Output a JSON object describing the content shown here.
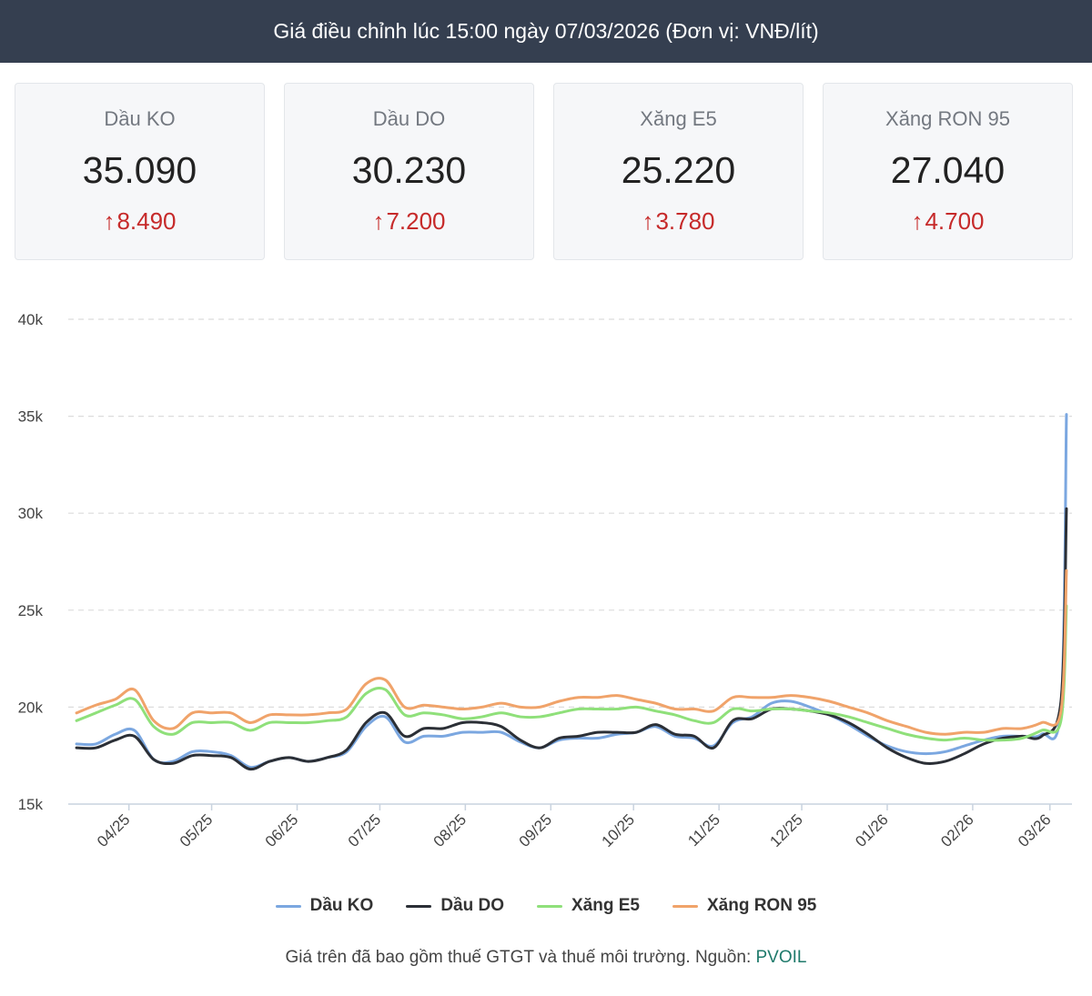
{
  "header": {
    "title": "Giá điều chỉnh lúc 15:00 ngày 07/03/2026 (Đơn vị: VNĐ/lít)"
  },
  "cards": [
    {
      "label": "Dầu KO",
      "price": "35.090",
      "change": "8.490"
    },
    {
      "label": "Dầu DO",
      "price": "30.230",
      "change": "7.200"
    },
    {
      "label": "Xăng E5",
      "price": "25.220",
      "change": "3.780"
    },
    {
      "label": "Xăng RON 95",
      "price": "27.040",
      "change": "4.700"
    }
  ],
  "icons": {
    "up_arrow": "arrow-up-icon"
  },
  "colors": {
    "header_bg": "#353f50",
    "increase": "#c62a2a",
    "source_link": "#1f7a6b"
  },
  "chart_data": {
    "type": "line",
    "title": "",
    "xlabel": "",
    "ylabel": "",
    "ylim": [
      15000,
      40000
    ],
    "yticks": [
      {
        "value": 15000,
        "label": "15k"
      },
      {
        "value": 20000,
        "label": "20k"
      },
      {
        "value": 25000,
        "label": "25k"
      },
      {
        "value": 30000,
        "label": "30k"
      },
      {
        "value": 35000,
        "label": "35k"
      },
      {
        "value": 40000,
        "label": "40k"
      }
    ],
    "xlim": [
      "2025-03-10",
      "2026-03-09"
    ],
    "xticks": [
      {
        "date": "2025-04-01",
        "label": "04/25"
      },
      {
        "date": "2025-05-01",
        "label": "05/25"
      },
      {
        "date": "2025-06-01",
        "label": "06/25"
      },
      {
        "date": "2025-07-01",
        "label": "07/25"
      },
      {
        "date": "2025-08-01",
        "label": "08/25"
      },
      {
        "date": "2025-09-01",
        "label": "09/25"
      },
      {
        "date": "2025-10-01",
        "label": "10/25"
      },
      {
        "date": "2025-11-01",
        "label": "11/25"
      },
      {
        "date": "2025-12-01",
        "label": "12/25"
      },
      {
        "date": "2026-01-01",
        "label": "01/26"
      },
      {
        "date": "2026-02-01",
        "label": "02/26"
      },
      {
        "date": "2026-03-01",
        "label": "03/26"
      }
    ],
    "grid": "horizontal dashed",
    "legend_position": "bottom-center",
    "x": [
      "2025-03-13",
      "2025-03-20",
      "2025-03-27",
      "2025-04-03",
      "2025-04-10",
      "2025-04-17",
      "2025-04-24",
      "2025-05-01",
      "2025-05-08",
      "2025-05-15",
      "2025-05-22",
      "2025-05-29",
      "2025-06-05",
      "2025-06-12",
      "2025-06-19",
      "2025-06-26",
      "2025-07-03",
      "2025-07-10",
      "2025-07-17",
      "2025-07-24",
      "2025-07-31",
      "2025-08-07",
      "2025-08-14",
      "2025-08-21",
      "2025-08-28",
      "2025-09-04",
      "2025-09-11",
      "2025-09-18",
      "2025-09-25",
      "2025-10-02",
      "2025-10-09",
      "2025-10-16",
      "2025-10-23",
      "2025-10-30",
      "2025-11-06",
      "2025-11-13",
      "2025-11-20",
      "2025-11-27",
      "2025-12-04",
      "2025-12-11",
      "2025-12-18",
      "2025-12-25",
      "2026-01-01",
      "2026-01-08",
      "2026-01-15",
      "2026-01-22",
      "2026-01-29",
      "2026-02-05",
      "2026-02-12",
      "2026-02-19",
      "2026-02-26",
      "2026-03-05",
      "2026-03-07"
    ],
    "series": [
      {
        "name": "Dầu KO",
        "color": "#7ba7e0",
        "values": [
          18100,
          18100,
          18600,
          18800,
          17300,
          17200,
          17700,
          17700,
          17500,
          16900,
          17200,
          17400,
          17200,
          17400,
          17700,
          19000,
          19500,
          18200,
          18500,
          18500,
          18700,
          18700,
          18700,
          18200,
          17900,
          18300,
          18400,
          18400,
          18600,
          18700,
          19000,
          18500,
          18400,
          18000,
          19200,
          19500,
          20200,
          20300,
          20000,
          19600,
          19100,
          18500,
          18000,
          17700,
          17600,
          17700,
          18000,
          18300,
          18500,
          18500,
          18600,
          20000,
          35090
        ]
      },
      {
        "name": "Dầu DO",
        "color": "#2b2f36",
        "values": [
          17900,
          17900,
          18300,
          18500,
          17300,
          17100,
          17500,
          17500,
          17400,
          16800,
          17200,
          17400,
          17200,
          17400,
          17800,
          19200,
          19700,
          18500,
          18900,
          18900,
          19200,
          19200,
          19000,
          18300,
          17900,
          18400,
          18500,
          18700,
          18700,
          18700,
          19100,
          18600,
          18500,
          17900,
          19300,
          19400,
          19900,
          19900,
          19800,
          19600,
          19200,
          18600,
          17900,
          17400,
          17100,
          17200,
          17600,
          18100,
          18400,
          18500,
          18500,
          20300,
          30230
        ]
      },
      {
        "name": "Xăng E5",
        "color": "#8fe07a",
        "values": [
          19300,
          19700,
          20100,
          20400,
          19000,
          18600,
          19200,
          19200,
          19200,
          18800,
          19200,
          19200,
          19200,
          19300,
          19500,
          20700,
          20900,
          19600,
          19700,
          19600,
          19400,
          19500,
          19700,
          19500,
          19500,
          19700,
          19900,
          19900,
          19900,
          20000,
          19800,
          19600,
          19300,
          19200,
          19900,
          19800,
          19900,
          19900,
          19800,
          19700,
          19500,
          19200,
          18900,
          18600,
          18400,
          18300,
          18400,
          18300,
          18300,
          18400,
          18800,
          19300,
          25220
        ]
      },
      {
        "name": "Xăng RON 95",
        "color": "#f0a36a",
        "values": [
          19700,
          20100,
          20400,
          20900,
          19300,
          18900,
          19700,
          19700,
          19700,
          19200,
          19600,
          19600,
          19600,
          19700,
          19900,
          21200,
          21400,
          20000,
          20100,
          20000,
          19900,
          20000,
          20200,
          20000,
          20000,
          20300,
          20500,
          20500,
          20600,
          20400,
          20200,
          19900,
          19900,
          19800,
          20500,
          20500,
          20500,
          20600,
          20500,
          20300,
          20000,
          19700,
          19300,
          19000,
          18700,
          18600,
          18700,
          18700,
          18900,
          18900,
          19200,
          19800,
          27040
        ]
      }
    ]
  },
  "footer": {
    "note": "Giá trên đã bao gồm thuế GTGT và thuế môi trường. Nguồn:",
    "source": "PVOIL"
  }
}
